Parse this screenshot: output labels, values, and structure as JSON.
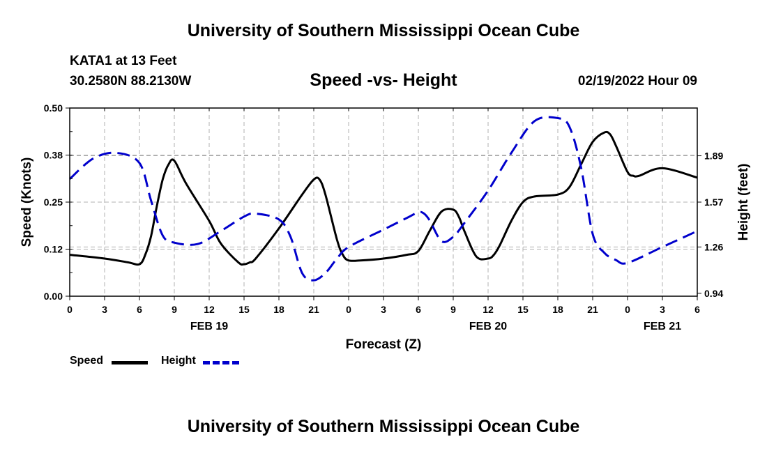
{
  "header": {
    "title": "University of Southern Mississippi Ocean Cube",
    "station": "KATA1 at 13 Feet",
    "coords": "30.2580N  88.2130W",
    "subtitle": "Speed -vs- Height",
    "datetime": "02/19/2022 Hour 09"
  },
  "footer": {
    "title": "University of Southern Mississippi Ocean Cube"
  },
  "legend": {
    "speed_label": "Speed",
    "height_label": "Height"
  },
  "colors": {
    "speed": "#000000",
    "height": "#0000cc",
    "grid": "#b0b0b0"
  },
  "chart_data": {
    "type": "line",
    "title": "Speed -vs- Height",
    "xlabel": "Forecast (Z)",
    "ylabel": "Speed (Knots)",
    "y2label": "Height (feet)",
    "x_range": [
      0,
      54
    ],
    "x_ticks": [
      0,
      3,
      6,
      9,
      12,
      15,
      18,
      21,
      24,
      27,
      30,
      33,
      36,
      39,
      42,
      45,
      48,
      51,
      54
    ],
    "x_tick_labels": [
      "0",
      "3",
      "6",
      "9",
      "12",
      "15",
      "18",
      "21",
      "0",
      "3",
      "6",
      "9",
      "12",
      "15",
      "18",
      "21",
      "0",
      "3",
      "6"
    ],
    "day_labels": [
      {
        "x": 12,
        "label": "FEB 19"
      },
      {
        "x": 36,
        "label": "FEB 20"
      },
      {
        "x": 51,
        "label": "FEB 21"
      }
    ],
    "ylim": [
      0,
      0.5
    ],
    "y_ticks": [
      0,
      0.125,
      0.25,
      0.375,
      0.5
    ],
    "y_tick_labels": [
      "0.00",
      "0.12",
      "0.25",
      "0.38",
      "0.50"
    ],
    "y2lim": [
      0.92,
      2.22
    ],
    "y2_ticks": [
      0.94,
      1.26,
      1.57,
      1.89
    ],
    "y2_tick_labels": [
      "0.94",
      "1.26",
      "1.57",
      "1.89"
    ],
    "grid": true,
    "legend_position": "bottom-left",
    "series": [
      {
        "name": "Speed",
        "axis": "left",
        "style": "solid",
        "x": [
          0,
          3,
          5,
          6,
          6.5,
          7,
          7.5,
          8,
          8.5,
          9,
          10,
          12,
          13,
          14.5,
          15,
          15.5,
          16,
          18,
          20,
          21,
          21.5,
          22,
          23,
          23.5,
          24,
          25,
          27,
          29,
          30,
          31,
          32,
          33,
          33.5,
          34,
          35,
          36,
          36.5,
          37,
          38,
          39,
          40,
          42,
          43,
          44,
          45,
          46,
          46.5,
          47,
          48,
          48.5,
          49,
          51,
          54
        ],
        "y": [
          0.11,
          0.1,
          0.09,
          0.085,
          0.11,
          0.16,
          0.24,
          0.31,
          0.35,
          0.36,
          0.3,
          0.2,
          0.14,
          0.09,
          0.085,
          0.09,
          0.1,
          0.18,
          0.27,
          0.31,
          0.31,
          0.27,
          0.15,
          0.11,
          0.095,
          0.095,
          0.1,
          0.11,
          0.12,
          0.175,
          0.225,
          0.23,
          0.21,
          0.17,
          0.105,
          0.1,
          0.11,
          0.135,
          0.2,
          0.25,
          0.265,
          0.27,
          0.29,
          0.35,
          0.41,
          0.435,
          0.43,
          0.4,
          0.33,
          0.32,
          0.32,
          0.34,
          0.315
        ]
      },
      {
        "name": "Height",
        "axis": "right",
        "style": "dashed",
        "x": [
          0,
          2,
          4,
          6,
          7,
          8,
          9,
          11,
          13,
          15,
          16,
          18,
          19,
          20,
          21,
          22,
          23,
          24,
          27,
          29,
          30,
          30.5,
          31,
          32,
          33,
          34,
          36,
          38,
          40,
          42,
          43,
          44,
          45,
          46,
          47,
          48,
          51,
          54
        ],
        "y": [
          1.73,
          1.87,
          1.91,
          1.84,
          1.58,
          1.34,
          1.29,
          1.28,
          1.37,
          1.47,
          1.49,
          1.45,
          1.33,
          1.08,
          1.03,
          1.08,
          1.18,
          1.26,
          1.38,
          1.46,
          1.5,
          1.49,
          1.44,
          1.3,
          1.33,
          1.43,
          1.65,
          1.91,
          2.13,
          2.15,
          2.09,
          1.81,
          1.35,
          1.22,
          1.17,
          1.15,
          1.26,
          1.37
        ]
      }
    ]
  }
}
